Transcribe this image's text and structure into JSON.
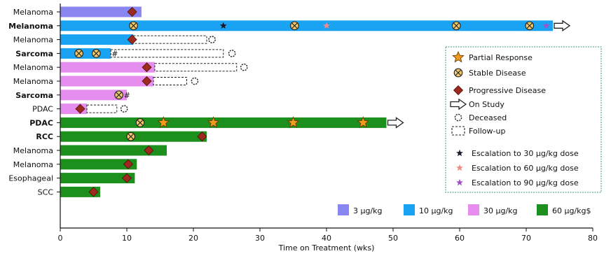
{
  "chart_data": {
    "type": "bar",
    "orientation": "horizontal",
    "xlabel": "Time on Treatment (wks)",
    "xlim": [
      0,
      80
    ],
    "xticks": [
      0,
      10,
      20,
      30,
      40,
      50,
      60,
      70,
      80
    ],
    "grid": false,
    "dose_colors": {
      "3 µg/kg": "#8a86f0",
      "10 µg/kg": "#1aa3f2",
      "30 µg/kg": "#e58ef0",
      "60 µg/kg$": "#1d8f1d"
    },
    "rows": [
      {
        "label": "Melanoma",
        "bold": false,
        "dose": "3 µg/kg",
        "duration": 12.2,
        "followup_end": null,
        "on_study": false,
        "deceased_at": null,
        "note": "",
        "events": [
          {
            "type": "progressive",
            "t": 10.8
          }
        ]
      },
      {
        "label": "Melanoma",
        "bold": true,
        "dose": "10 µg/kg",
        "duration": 74,
        "followup_end": null,
        "on_study": true,
        "deceased_at": null,
        "note": "",
        "events": [
          {
            "type": "stable",
            "t": 11.0
          },
          {
            "type": "esc30",
            "t": 24.5
          },
          {
            "type": "stable",
            "t": 35.2
          },
          {
            "type": "esc60",
            "t": 40.0
          },
          {
            "type": "stable",
            "t": 59.5
          },
          {
            "type": "stable",
            "t": 70.5
          },
          {
            "type": "esc90",
            "t": 73.0
          }
        ]
      },
      {
        "label": "Melanoma",
        "bold": false,
        "dose": "10 µg/kg",
        "duration": 11,
        "followup_end": 22,
        "on_study": false,
        "deceased_at": 22.8,
        "note": "",
        "events": [
          {
            "type": "progressive",
            "t": 10.8
          }
        ]
      },
      {
        "label": "Sarcoma",
        "bold": true,
        "dose": "10 µg/kg",
        "duration": 7.6,
        "followup_end": 24.5,
        "on_study": false,
        "deceased_at": 25.8,
        "note": "#",
        "events": [
          {
            "type": "stable",
            "t": 2.8
          },
          {
            "type": "stable",
            "t": 5.4
          }
        ]
      },
      {
        "label": "Melanoma",
        "bold": false,
        "dose": "30 µg/kg",
        "duration": 14.2,
        "followup_end": 26.5,
        "on_study": false,
        "deceased_at": 27.6,
        "note": "",
        "events": [
          {
            "type": "progressive",
            "t": 13.0
          }
        ]
      },
      {
        "label": "Melanoma",
        "bold": false,
        "dose": "30 µg/kg",
        "duration": 14.0,
        "followup_end": 19,
        "on_study": false,
        "deceased_at": 20.2,
        "note": "",
        "events": [
          {
            "type": "progressive",
            "t": 13.0
          }
        ]
      },
      {
        "label": "Sarcoma",
        "bold": true,
        "dose": "30 µg/kg",
        "duration": 10,
        "followup_end": null,
        "on_study": false,
        "deceased_at": null,
        "note": "#",
        "events": [
          {
            "type": "stable",
            "t": 8.8
          }
        ]
      },
      {
        "label": "PDAC",
        "bold": false,
        "dose": "30 µg/kg",
        "duration": 4,
        "followup_end": 8.5,
        "on_study": false,
        "deceased_at": 9.6,
        "note": "",
        "events": [
          {
            "type": "progressive",
            "t": 3.0
          }
        ]
      },
      {
        "label": "PDAC",
        "bold": true,
        "dose": "60 µg/kg$",
        "duration": 49,
        "followup_end": null,
        "on_study": true,
        "deceased_at": null,
        "note": "",
        "events": [
          {
            "type": "stable",
            "t": 12.0
          },
          {
            "type": "partial",
            "t": 15.5
          },
          {
            "type": "partial",
            "t": 23.0
          },
          {
            "type": "partial",
            "t": 35.0
          },
          {
            "type": "partial",
            "t": 45.5
          }
        ]
      },
      {
        "label": "RCC",
        "bold": true,
        "dose": "60 µg/kg$",
        "duration": 22,
        "followup_end": null,
        "on_study": false,
        "deceased_at": null,
        "note": "",
        "events": [
          {
            "type": "stable",
            "t": 10.6
          },
          {
            "type": "progressive",
            "t": 21.3
          }
        ]
      },
      {
        "label": "Melanoma",
        "bold": false,
        "dose": "60 µg/kg$",
        "duration": 16,
        "followup_end": null,
        "on_study": false,
        "deceased_at": null,
        "note": "",
        "events": [
          {
            "type": "progressive",
            "t": 13.3
          }
        ]
      },
      {
        "label": "Melanoma",
        "bold": false,
        "dose": "60 µg/kg$",
        "duration": 11.5,
        "followup_end": null,
        "on_study": false,
        "deceased_at": null,
        "note": "",
        "events": [
          {
            "type": "progressive",
            "t": 10.2
          }
        ]
      },
      {
        "label": "Esophageal",
        "bold": false,
        "dose": "60 µg/kg$",
        "duration": 11.2,
        "followup_end": null,
        "on_study": false,
        "deceased_at": null,
        "note": "",
        "events": [
          {
            "type": "progressive",
            "t": 10.0
          }
        ]
      },
      {
        "label": "SCC",
        "bold": false,
        "dose": "60 µg/kg$",
        "duration": 6,
        "followup_end": null,
        "on_study": false,
        "deceased_at": null,
        "note": "",
        "events": [
          {
            "type": "progressive",
            "t": 5.0
          }
        ]
      }
    ],
    "legend": {
      "placement": "right",
      "items": [
        {
          "symbol": "partial",
          "label": "Partial Response"
        },
        {
          "symbol": "stable",
          "label": "Stable Disease"
        },
        {
          "symbol": "progressive",
          "label": "Progressive Disease"
        },
        {
          "symbol": "on_study",
          "label": "On Study"
        },
        {
          "symbol": "deceased",
          "label": "Deceased"
        },
        {
          "symbol": "followup",
          "label": "Follow-up"
        },
        {
          "symbol": "esc30",
          "label": "Escalation to 30 µg/kg dose"
        },
        {
          "symbol": "esc60",
          "label": "Escalation to 60 µg/kg dose"
        },
        {
          "symbol": "esc90",
          "label": "Escalation to 90 µg/kg dose"
        }
      ],
      "border_color": "#3a9a6a"
    },
    "dose_legend": {
      "placement": "bottom-right",
      "items": [
        {
          "dose": "3 µg/kg",
          "label": "3 µg/kg"
        },
        {
          "dose": "10 µg/kg",
          "label": "10 µg/kg"
        },
        {
          "dose": "30 µg/kg",
          "label": "30 µg/kg"
        },
        {
          "dose": "60 µg/kg$",
          "label": "60 µg/kg$"
        }
      ]
    },
    "marker_colors": {
      "partial": "#f29a1a",
      "stable": "#f2c86a",
      "progressive": "#9e2a1f",
      "esc30": "#1a1a2a",
      "esc60": "#f08a8a",
      "esc90": "#a050c8"
    }
  }
}
